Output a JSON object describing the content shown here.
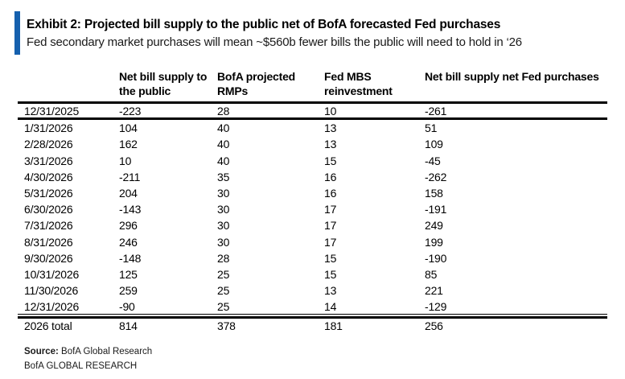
{
  "exhibit": {
    "accent_color": "#1560ae",
    "title": "Exhibit 2: Projected bill supply to the public net of BofA forecasted Fed purchases",
    "subtitle": "Fed secondary market purchases will mean ~$560b fewer bills the public will need to hold in ‘26"
  },
  "chart_data": {
    "type": "table",
    "title": "Exhibit 2: Projected bill supply to the public net of BofA forecasted Fed purchases",
    "subtitle": "Fed secondary market purchases will mean ~$560b fewer bills the public will need to hold in ‘26",
    "columns": [
      "",
      "Net bill supply to the public",
      "BofA projected RMPs",
      "Fed MBS reinvestment",
      "Net bill supply net Fed purchases"
    ],
    "rows": [
      [
        "12/31/2025",
        "-223",
        "28",
        "10",
        "-261"
      ],
      [
        "1/31/2026",
        "104",
        "40",
        "13",
        "51"
      ],
      [
        "2/28/2026",
        "162",
        "40",
        "13",
        "109"
      ],
      [
        "3/31/2026",
        "10",
        "40",
        "15",
        "-45"
      ],
      [
        "4/30/2026",
        "-211",
        "35",
        "16",
        "-262"
      ],
      [
        "5/31/2026",
        "204",
        "30",
        "16",
        "158"
      ],
      [
        "6/30/2026",
        "-143",
        "30",
        "17",
        "-191"
      ],
      [
        "7/31/2026",
        "296",
        "30",
        "17",
        "249"
      ],
      [
        "8/31/2026",
        "246",
        "30",
        "17",
        "199"
      ],
      [
        "9/30/2026",
        "-148",
        "28",
        "15",
        "-190"
      ],
      [
        "10/31/2026",
        "125",
        "25",
        "15",
        "85"
      ],
      [
        "11/30/2026",
        "259",
        "25",
        "13",
        "221"
      ],
      [
        "12/31/2026",
        "-90",
        "25",
        "14",
        "-129"
      ]
    ],
    "total_row": [
      "2026 total",
      "814",
      "378",
      "181",
      "256"
    ]
  },
  "footer": {
    "source_label": "Source:",
    "source_text": "BofA Global Research",
    "brand_line": "BofA GLOBAL RESEARCH"
  }
}
